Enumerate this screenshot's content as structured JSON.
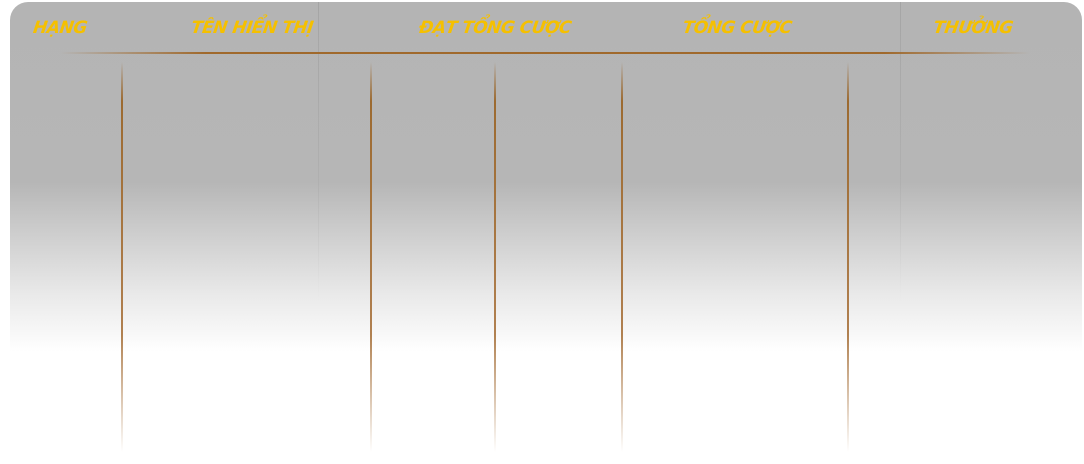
{
  "table": {
    "headers": [
      "HẠNG",
      "TÊN HIỂN THỊ",
      "ĐẠT TỔNG CƯỢC",
      "TỔNG CƯỢC",
      "THƯỞNG"
    ]
  }
}
